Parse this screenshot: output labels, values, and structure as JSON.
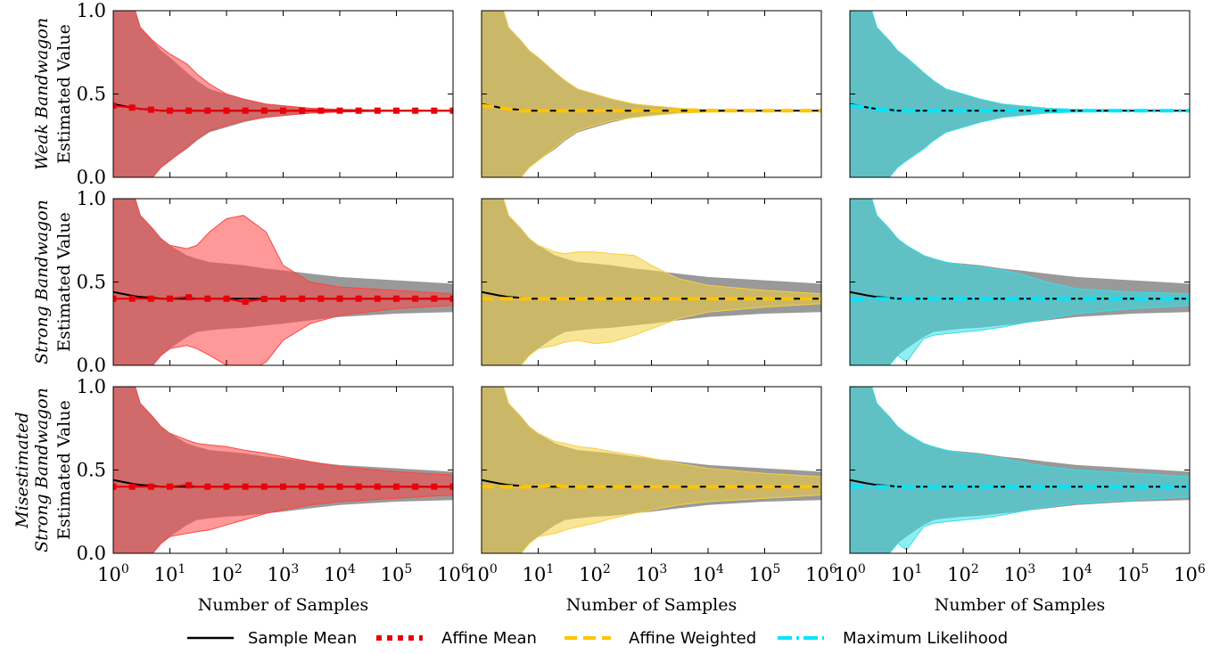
{
  "chart_data": {
    "type": "area",
    "layout": "3x3 grid",
    "x_scale": "log",
    "xlim": [
      1,
      1000000
    ],
    "ylim": [
      0.0,
      1.0
    ],
    "x_ticks": [
      1,
      10,
      100,
      1000,
      10000,
      100000,
      1000000
    ],
    "x_tick_labels": [
      {
        "base": "10",
        "exp": "0"
      },
      {
        "base": "10",
        "exp": "1"
      },
      {
        "base": "10",
        "exp": "2"
      },
      {
        "base": "10",
        "exp": "3"
      },
      {
        "base": "10",
        "exp": "4"
      },
      {
        "base": "10",
        "exp": "5"
      },
      {
        "base": "10",
        "exp": "6"
      }
    ],
    "y_ticks": [
      0.0,
      0.5,
      1.0
    ],
    "y_tick_labels": [
      "0.0",
      "0.5",
      "1.0"
    ],
    "xlabel": "Number of Samples",
    "ylabel": "Estimated Value",
    "rows": [
      {
        "title_lines": [
          "Weak Bandwagon"
        ],
        "scenario": "weak"
      },
      {
        "title_lines": [
          "Strong Bandwagon"
        ],
        "scenario": "strong"
      },
      {
        "title_lines": [
          "Misestimated",
          "Strong Bandwagon"
        ],
        "scenario": "misestimated"
      }
    ],
    "columns": [
      {
        "estimator": "Affine Mean",
        "color": "#ff4444",
        "line_color": "#e8000b",
        "style": "dotted-square"
      },
      {
        "estimator": "Affine Weighted",
        "color": "#f4d03f",
        "line_color": "#ffc400",
        "style": "dashed"
      },
      {
        "estimator": "Maximum Likelihood",
        "color": "#33e0e8",
        "line_color": "#00e5ff",
        "style": "dashdot"
      }
    ],
    "reference": {
      "name": "Sample Mean",
      "color": "#808080",
      "line_color": "#000000",
      "true_value": 0.4
    },
    "x_samples": [
      1,
      2,
      3,
      5,
      7,
      10,
      20,
      30,
      50,
      100,
      200,
      500,
      1000,
      3000,
      10000,
      100000,
      1000000
    ],
    "sample_mean_band": {
      "lower": [
        -0.5,
        -0.3,
        -0.05,
        0.0,
        0.06,
        0.1,
        0.16,
        0.2,
        0.23,
        0.25,
        0.28,
        0.3,
        0.31,
        0.33,
        0.34,
        0.35,
        0.35
      ],
      "upper": [
        1.3,
        1.1,
        0.9,
        0.82,
        0.76,
        0.72,
        0.65,
        0.6,
        0.57,
        0.55,
        0.52,
        0.5,
        0.49,
        0.47,
        0.46,
        0.45,
        0.45
      ],
      "weak_lower": [
        -0.5,
        -0.3,
        -0.05,
        0.0,
        0.06,
        0.1,
        0.17,
        0.22,
        0.27,
        0.3,
        0.33,
        0.36,
        0.37,
        0.385,
        0.392,
        0.398,
        0.4
      ],
      "weak_upper": [
        1.3,
        1.1,
        0.9,
        0.82,
        0.76,
        0.72,
        0.63,
        0.58,
        0.53,
        0.5,
        0.47,
        0.44,
        0.43,
        0.415,
        0.408,
        0.402,
        0.4
      ],
      "strong_lower": [
        -0.5,
        -0.3,
        -0.05,
        0.0,
        0.06,
        0.1,
        0.17,
        0.2,
        0.21,
        0.22,
        0.225,
        0.24,
        0.25,
        0.27,
        0.29,
        0.31,
        0.32
      ],
      "strong_upper": [
        1.3,
        1.1,
        0.9,
        0.82,
        0.76,
        0.72,
        0.66,
        0.64,
        0.62,
        0.61,
        0.6,
        0.58,
        0.57,
        0.55,
        0.53,
        0.51,
        0.49
      ]
    },
    "mean_values": [
      0.44,
      0.42,
      0.41,
      0.405,
      0.4,
      0.4,
      0.4,
      0.4,
      0.4,
      0.4,
      0.4,
      0.4,
      0.4,
      0.4,
      0.4,
      0.4,
      0.4
    ],
    "panels": [
      {
        "row": 0,
        "col": 0,
        "estimate": [
          0.43,
          0.42,
          0.41,
          0.405,
          0.4,
          0.4,
          0.4,
          0.4,
          0.4,
          0.4,
          0.4,
          0.4,
          0.4,
          0.4,
          0.4,
          0.4,
          0.4
        ],
        "lower": [
          -0.5,
          -0.3,
          -0.05,
          0.0,
          0.06,
          0.1,
          0.18,
          0.23,
          0.28,
          0.31,
          0.34,
          0.36,
          0.37,
          0.385,
          0.392,
          0.398,
          0.4
        ],
        "upper": [
          1.3,
          1.1,
          0.9,
          0.82,
          0.78,
          0.74,
          0.68,
          0.62,
          0.56,
          0.5,
          0.47,
          0.44,
          0.43,
          0.415,
          0.408,
          0.402,
          0.4
        ]
      },
      {
        "row": 0,
        "col": 1,
        "estimate": [
          0.43,
          0.42,
          0.41,
          0.4,
          0.4,
          0.4,
          0.4,
          0.4,
          0.4,
          0.4,
          0.4,
          0.4,
          0.4,
          0.4,
          0.4,
          0.4,
          0.4
        ],
        "lower": [
          -0.5,
          -0.3,
          -0.05,
          0.0,
          0.06,
          0.1,
          0.18,
          0.23,
          0.28,
          0.31,
          0.34,
          0.36,
          0.37,
          0.385,
          0.392,
          0.398,
          0.4
        ],
        "upper": [
          1.3,
          1.1,
          0.9,
          0.82,
          0.76,
          0.72,
          0.63,
          0.58,
          0.53,
          0.5,
          0.47,
          0.44,
          0.43,
          0.415,
          0.408,
          0.402,
          0.4
        ]
      },
      {
        "row": 0,
        "col": 2,
        "estimate": [
          0.43,
          0.42,
          0.41,
          0.4,
          0.4,
          0.4,
          0.4,
          0.4,
          0.4,
          0.4,
          0.4,
          0.4,
          0.4,
          0.4,
          0.4,
          0.4,
          0.4
        ],
        "lower": [
          -0.5,
          -0.3,
          -0.05,
          0.0,
          0.06,
          0.1,
          0.17,
          0.22,
          0.27,
          0.3,
          0.33,
          0.36,
          0.37,
          0.385,
          0.392,
          0.398,
          0.4
        ],
        "upper": [
          1.3,
          1.1,
          0.9,
          0.82,
          0.76,
          0.72,
          0.63,
          0.58,
          0.53,
          0.5,
          0.47,
          0.44,
          0.43,
          0.415,
          0.408,
          0.402,
          0.4
        ]
      },
      {
        "row": 1,
        "col": 0,
        "estimate": [
          0.4,
          0.4,
          0.4,
          0.4,
          0.4,
          0.4,
          0.41,
          0.4,
          0.4,
          0.4,
          0.38,
          0.4,
          0.4,
          0.4,
          0.4,
          0.4,
          0.4
        ],
        "lower": [
          -0.5,
          -0.3,
          -0.05,
          0.0,
          0.06,
          0.1,
          0.12,
          0.1,
          0.06,
          0.0,
          -0.05,
          0.02,
          0.15,
          0.25,
          0.3,
          0.34,
          0.36
        ],
        "upper": [
          1.3,
          1.1,
          0.9,
          0.82,
          0.76,
          0.72,
          0.7,
          0.72,
          0.8,
          0.88,
          0.9,
          0.8,
          0.6,
          0.5,
          0.47,
          0.45,
          0.43
        ]
      },
      {
        "row": 1,
        "col": 1,
        "estimate": [
          0.4,
          0.4,
          0.4,
          0.4,
          0.4,
          0.4,
          0.4,
          0.4,
          0.4,
          0.4,
          0.4,
          0.4,
          0.4,
          0.4,
          0.4,
          0.4,
          0.4
        ],
        "lower": [
          -0.5,
          -0.3,
          -0.05,
          0.0,
          0.06,
          0.1,
          0.12,
          0.14,
          0.15,
          0.13,
          0.14,
          0.18,
          0.22,
          0.28,
          0.32,
          0.35,
          0.37
        ],
        "upper": [
          1.3,
          1.1,
          0.9,
          0.82,
          0.76,
          0.72,
          0.68,
          0.67,
          0.68,
          0.68,
          0.67,
          0.66,
          0.6,
          0.52,
          0.48,
          0.45,
          0.43
        ]
      },
      {
        "row": 1,
        "col": 2,
        "estimate": [
          0.39,
          0.4,
          0.4,
          0.4,
          0.4,
          0.4,
          0.4,
          0.4,
          0.4,
          0.4,
          0.4,
          0.4,
          0.4,
          0.4,
          0.4,
          0.4,
          0.4
        ],
        "lower": [
          -0.5,
          -0.3,
          -0.05,
          0.0,
          0.06,
          0.02,
          0.16,
          0.18,
          0.19,
          0.2,
          0.21,
          0.23,
          0.25,
          0.28,
          0.31,
          0.34,
          0.36
        ],
        "upper": [
          1.3,
          1.1,
          0.9,
          0.82,
          0.76,
          0.72,
          0.66,
          0.64,
          0.62,
          0.6,
          0.59,
          0.57,
          0.55,
          0.5,
          0.46,
          0.44,
          0.43
        ]
      },
      {
        "row": 2,
        "col": 0,
        "estimate": [
          0.4,
          0.4,
          0.4,
          0.4,
          0.4,
          0.4,
          0.41,
          0.4,
          0.4,
          0.4,
          0.4,
          0.4,
          0.4,
          0.4,
          0.4,
          0.4,
          0.4
        ],
        "lower": [
          -0.5,
          -0.3,
          -0.05,
          0.0,
          0.06,
          0.1,
          0.12,
          0.13,
          0.14,
          0.17,
          0.2,
          0.24,
          0.26,
          0.29,
          0.31,
          0.33,
          0.35
        ],
        "upper": [
          1.3,
          1.1,
          0.9,
          0.82,
          0.76,
          0.72,
          0.68,
          0.66,
          0.65,
          0.64,
          0.62,
          0.6,
          0.58,
          0.55,
          0.52,
          0.49,
          0.47
        ]
      },
      {
        "row": 2,
        "col": 1,
        "estimate": [
          0.4,
          0.4,
          0.4,
          0.4,
          0.4,
          0.4,
          0.41,
          0.4,
          0.4,
          0.4,
          0.4,
          0.4,
          0.4,
          0.4,
          0.4,
          0.4,
          0.4
        ],
        "lower": [
          -0.5,
          -0.3,
          -0.05,
          0.0,
          0.06,
          0.1,
          0.12,
          0.14,
          0.16,
          0.18,
          0.21,
          0.24,
          0.26,
          0.29,
          0.31,
          0.33,
          0.35
        ],
        "upper": [
          1.3,
          1.1,
          0.9,
          0.82,
          0.76,
          0.72,
          0.67,
          0.66,
          0.64,
          0.63,
          0.61,
          0.59,
          0.57,
          0.54,
          0.51,
          0.48,
          0.46
        ]
      },
      {
        "row": 2,
        "col": 2,
        "estimate": [
          0.4,
          0.4,
          0.4,
          0.4,
          0.4,
          0.4,
          0.4,
          0.4,
          0.4,
          0.4,
          0.4,
          0.4,
          0.4,
          0.4,
          0.4,
          0.4,
          0.4
        ],
        "lower": [
          -0.5,
          -0.3,
          -0.05,
          0.0,
          0.06,
          0.02,
          0.16,
          0.18,
          0.19,
          0.2,
          0.21,
          0.23,
          0.25,
          0.28,
          0.3,
          0.32,
          0.34
        ],
        "upper": [
          1.3,
          1.1,
          0.9,
          0.82,
          0.76,
          0.72,
          0.66,
          0.64,
          0.62,
          0.6,
          0.59,
          0.57,
          0.55,
          0.52,
          0.5,
          0.48,
          0.46
        ]
      }
    ],
    "legend": {
      "placement": "bottom-center",
      "entries": [
        {
          "label": "Sample Mean",
          "color": "#000000",
          "style": "solid"
        },
        {
          "label": "Affine Mean",
          "color": "#e8000b",
          "style": "dotted"
        },
        {
          "label": "Affine Weighted",
          "color": "#ffc400",
          "style": "dashed"
        },
        {
          "label": "Maximum Likelihood",
          "color": "#00e5ff",
          "style": "dashdot"
        }
      ]
    },
    "grid": false
  }
}
